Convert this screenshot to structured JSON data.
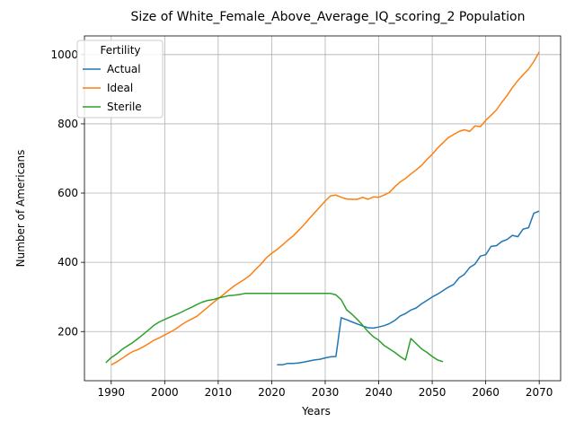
{
  "chart_data": {
    "type": "line",
    "title": "Size of White_Female_Above_Average_IQ_scoring_2 Population",
    "xlabel": "Years",
    "ylabel": "Number of Americans",
    "xlim": [
      1985,
      2074
    ],
    "ylim": [
      58,
      1054
    ],
    "xticks": [
      1990,
      2000,
      2010,
      2020,
      2030,
      2040,
      2050,
      2060,
      2070
    ],
    "yticks": [
      200,
      400,
      600,
      800,
      1000
    ],
    "grid": true,
    "legend": {
      "title": "Fertility",
      "placement": "upper-left"
    },
    "series": [
      {
        "name": "Actual",
        "color": "#1f77b4",
        "points": [
          [
            2021,
            104
          ],
          [
            2022,
            104
          ],
          [
            2023,
            108
          ],
          [
            2024,
            108
          ],
          [
            2025,
            109
          ],
          [
            2026,
            112
          ],
          [
            2027,
            115
          ],
          [
            2028,
            118
          ],
          [
            2029,
            120
          ],
          [
            2030,
            124
          ],
          [
            2031,
            127
          ],
          [
            2032,
            128
          ],
          [
            2033,
            240
          ],
          [
            2034,
            234
          ],
          [
            2035,
            228
          ],
          [
            2036,
            222
          ],
          [
            2037,
            216
          ],
          [
            2038,
            211
          ],
          [
            2039,
            210
          ],
          [
            2040,
            213
          ],
          [
            2041,
            217
          ],
          [
            2042,
            223
          ],
          [
            2043,
            232
          ],
          [
            2044,
            245
          ],
          [
            2045,
            252
          ],
          [
            2046,
            262
          ],
          [
            2047,
            268
          ],
          [
            2048,
            280
          ],
          [
            2049,
            290
          ],
          [
            2050,
            300
          ],
          [
            2051,
            308
          ],
          [
            2052,
            318
          ],
          [
            2053,
            328
          ],
          [
            2054,
            336
          ],
          [
            2055,
            355
          ],
          [
            2056,
            365
          ],
          [
            2057,
            385
          ],
          [
            2058,
            395
          ],
          [
            2059,
            418
          ],
          [
            2060,
            422
          ],
          [
            2061,
            446
          ],
          [
            2062,
            448
          ],
          [
            2063,
            460
          ],
          [
            2064,
            466
          ],
          [
            2065,
            478
          ],
          [
            2066,
            474
          ],
          [
            2067,
            496
          ],
          [
            2068,
            500
          ],
          [
            2069,
            542
          ],
          [
            2070,
            548
          ]
        ]
      },
      {
        "name": "Ideal",
        "color": "#ff7f0e",
        "points": [
          [
            1990,
            104
          ],
          [
            1991,
            112
          ],
          [
            1992,
            122
          ],
          [
            1993,
            133
          ],
          [
            1994,
            142
          ],
          [
            1995,
            148
          ],
          [
            1996,
            156
          ],
          [
            1997,
            165
          ],
          [
            1998,
            175
          ],
          [
            1999,
            182
          ],
          [
            2000,
            190
          ],
          [
            2001,
            198
          ],
          [
            2002,
            207
          ],
          [
            2003,
            218
          ],
          [
            2004,
            228
          ],
          [
            2005,
            236
          ],
          [
            2006,
            244
          ],
          [
            2007,
            257
          ],
          [
            2008,
            270
          ],
          [
            2009,
            283
          ],
          [
            2010,
            295
          ],
          [
            2011,
            307
          ],
          [
            2012,
            320
          ],
          [
            2013,
            332
          ],
          [
            2014,
            342
          ],
          [
            2015,
            352
          ],
          [
            2016,
            363
          ],
          [
            2017,
            380
          ],
          [
            2018,
            395
          ],
          [
            2019,
            413
          ],
          [
            2020,
            426
          ],
          [
            2021,
            437
          ],
          [
            2022,
            450
          ],
          [
            2023,
            464
          ],
          [
            2024,
            476
          ],
          [
            2025,
            492
          ],
          [
            2026,
            508
          ],
          [
            2027,
            526
          ],
          [
            2028,
            543
          ],
          [
            2029,
            560
          ],
          [
            2030,
            577
          ],
          [
            2031,
            592
          ],
          [
            2032,
            594
          ],
          [
            2033,
            588
          ],
          [
            2034,
            583
          ],
          [
            2035,
            582
          ],
          [
            2036,
            582
          ],
          [
            2037,
            588
          ],
          [
            2038,
            582
          ],
          [
            2039,
            589
          ],
          [
            2040,
            588
          ],
          [
            2041,
            594
          ],
          [
            2042,
            602
          ],
          [
            2043,
            618
          ],
          [
            2044,
            632
          ],
          [
            2045,
            642
          ],
          [
            2046,
            655
          ],
          [
            2047,
            667
          ],
          [
            2048,
            680
          ],
          [
            2049,
            697
          ],
          [
            2050,
            712
          ],
          [
            2051,
            730
          ],
          [
            2052,
            745
          ],
          [
            2053,
            760
          ],
          [
            2054,
            769
          ],
          [
            2055,
            778
          ],
          [
            2056,
            783
          ],
          [
            2057,
            778
          ],
          [
            2058,
            794
          ],
          [
            2059,
            792
          ],
          [
            2060,
            810
          ],
          [
            2061,
            825
          ],
          [
            2062,
            840
          ],
          [
            2063,
            862
          ],
          [
            2064,
            882
          ],
          [
            2065,
            905
          ],
          [
            2066,
            925
          ],
          [
            2067,
            942
          ],
          [
            2068,
            958
          ],
          [
            2069,
            980
          ],
          [
            2070,
            1008
          ]
        ]
      },
      {
        "name": "Sterile",
        "color": "#2ca02c",
        "points": [
          [
            1989,
            110
          ],
          [
            1990,
            125
          ],
          [
            1991,
            135
          ],
          [
            1992,
            148
          ],
          [
            1993,
            158
          ],
          [
            1994,
            168
          ],
          [
            1995,
            180
          ],
          [
            1996,
            192
          ],
          [
            1997,
            205
          ],
          [
            1998,
            218
          ],
          [
            1999,
            228
          ],
          [
            2000,
            235
          ],
          [
            2001,
            242
          ],
          [
            2002,
            248
          ],
          [
            2003,
            255
          ],
          [
            2004,
            263
          ],
          [
            2005,
            270
          ],
          [
            2006,
            278
          ],
          [
            2007,
            285
          ],
          [
            2008,
            290
          ],
          [
            2009,
            292
          ],
          [
            2010,
            297
          ],
          [
            2011,
            300
          ],
          [
            2012,
            304
          ],
          [
            2013,
            305
          ],
          [
            2014,
            307
          ],
          [
            2015,
            310
          ],
          [
            2016,
            310
          ],
          [
            2017,
            310
          ],
          [
            2018,
            310
          ],
          [
            2019,
            310
          ],
          [
            2020,
            310
          ],
          [
            2021,
            310
          ],
          [
            2022,
            310
          ],
          [
            2023,
            310
          ],
          [
            2024,
            310
          ],
          [
            2025,
            310
          ],
          [
            2026,
            310
          ],
          [
            2027,
            310
          ],
          [
            2028,
            310
          ],
          [
            2029,
            310
          ],
          [
            2030,
            310
          ],
          [
            2031,
            310
          ],
          [
            2032,
            306
          ],
          [
            2033,
            292
          ],
          [
            2034,
            263
          ],
          [
            2035,
            250
          ],
          [
            2036,
            235
          ],
          [
            2037,
            218
          ],
          [
            2038,
            200
          ],
          [
            2039,
            185
          ],
          [
            2040,
            175
          ],
          [
            2041,
            160
          ],
          [
            2042,
            150
          ],
          [
            2043,
            140
          ],
          [
            2044,
            128
          ],
          [
            2045,
            118
          ],
          [
            2046,
            180
          ],
          [
            2047,
            165
          ],
          [
            2048,
            150
          ],
          [
            2049,
            140
          ],
          [
            2050,
            128
          ],
          [
            2051,
            118
          ],
          [
            2052,
            113
          ]
        ]
      }
    ]
  }
}
